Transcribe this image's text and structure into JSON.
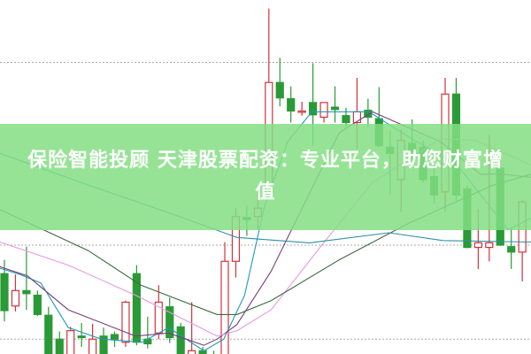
{
  "banner": {
    "title": "保险智能投顾 天津股票配资：专业平台，助您财富增值"
  },
  "colors": {
    "up": "#d2323c",
    "down": "#2a9a36",
    "grid": "#aaaaaa",
    "banner": "#84de84"
  },
  "chart_data": {
    "type": "candlestick",
    "title": "",
    "xlabel": "",
    "ylabel": "",
    "ylim": [
      0,
      46
    ],
    "grid": true,
    "grid_levels": [
      37.9,
      14.2,
      2.0
    ],
    "candles_ohlc": [
      [
        10.5,
        12.3,
        4.3,
        5.7
      ],
      [
        6.3,
        10.4,
        5.6,
        8.3
      ],
      [
        8.3,
        14.0,
        5.8,
        7.9
      ],
      [
        7.7,
        8.3,
        5.0,
        5.2
      ],
      [
        5.1,
        6.2,
        0,
        0
      ],
      [
        2.0,
        3.0,
        -1.0,
        -0.2
      ],
      [
        0,
        3.6,
        -0.2,
        3.1
      ],
      [
        2.4,
        4.1,
        1.0,
        2.2
      ],
      [
        0,
        4.0,
        -0.2,
        2.0
      ],
      [
        2.4,
        3.5,
        -0.2,
        0
      ],
      [
        2.6,
        3.0,
        1.0,
        2.0
      ],
      [
        1.6,
        7.0,
        1.0,
        6.8
      ],
      [
        10.5,
        11.6,
        1.2,
        1.6
      ],
      [
        2.0,
        4.9,
        0.8,
        1.4
      ],
      [
        2.8,
        9.0,
        2.0,
        6.8
      ],
      [
        6.2,
        7.4,
        1.5,
        2.2
      ],
      [
        3.6,
        4.1,
        -0.2,
        0
      ],
      [
        0,
        6.8,
        -0.2,
        0.5
      ],
      [
        0.5,
        1.0,
        -0.2,
        0
      ],
      [
        -0.5,
        0.5,
        -1.0,
        -0.8
      ],
      [
        0,
        14.6,
        -0.2,
        12.1
      ],
      [
        12.1,
        19.0,
        10.0,
        17.9
      ],
      [
        17.8,
        19.4,
        15.4,
        17.5
      ],
      [
        17.9,
        21.5,
        16.3,
        19.0
      ],
      [
        21.0,
        44.9,
        20.5,
        35.3
      ],
      [
        35.3,
        38.5,
        32.2,
        33.3
      ],
      [
        33.2,
        34.8,
        30.1,
        31.6
      ],
      [
        31.5,
        32.8,
        31.0,
        31.6
      ],
      [
        32.7,
        37.8,
        27.1,
        31.1
      ],
      [
        30.8,
        32.7,
        30.1,
        32.7
      ],
      [
        32.1,
        34.8,
        30.1,
        31.8
      ],
      [
        31.0,
        32.0,
        29.5,
        30.1
      ],
      [
        30.1,
        35.9,
        26.7,
        31.5
      ],
      [
        31.7,
        33.2,
        29.5,
        30.8
      ],
      [
        30.6,
        34.7,
        26.9,
        27.1
      ],
      [
        26.9,
        29.0,
        20.7,
        26.1
      ],
      [
        22.7,
        29.2,
        18.5,
        27.8
      ],
      [
        27.4,
        30.5,
        25.3,
        26.4
      ],
      [
        26.9,
        27.8,
        22.3,
        22.7
      ],
      [
        23.1,
        24.6,
        19.6,
        20.7
      ],
      [
        21.1,
        35.9,
        18.5,
        33.8
      ],
      [
        33.8,
        35.9,
        20.0,
        20.7
      ],
      [
        21.5,
        21.9,
        13.8,
        13.9
      ],
      [
        13.9,
        18.9,
        11.1,
        14.5
      ],
      [
        13.9,
        28.5,
        12.1,
        14.5
      ],
      [
        24.2,
        25.3,
        14.1,
        14.2
      ],
      [
        14.0,
        16.5,
        11.1,
        13.3
      ],
      [
        13.3,
        20.0,
        9.5,
        19.8
      ]
    ],
    "moving_averages": [
      {
        "color": "#1e9bb5",
        "points": [
          [
            -0.4,
            11.2
          ],
          [
            1.4,
            10.4
          ],
          [
            3.3,
            9.3
          ],
          [
            5.8,
            3.5
          ],
          [
            8.8,
            2.0
          ],
          [
            12.5,
            1.6
          ],
          [
            14.9,
            3.5
          ],
          [
            18.1,
            0.5
          ],
          [
            19.9,
            2.0
          ],
          [
            21.8,
            7.7
          ],
          [
            23.6,
            19.2
          ],
          [
            25.7,
            27.6
          ],
          [
            27.9,
            31.5
          ],
          [
            33.1,
            31.5
          ],
          [
            36.5,
            28.4
          ],
          [
            41.1,
            24.6
          ],
          [
            45.7,
            16.2
          ],
          [
            47.8,
            17.7
          ]
        ]
      },
      {
        "color": "#7a3f7a",
        "points": [
          [
            -0.4,
            11.4
          ],
          [
            2.1,
            10.2
          ],
          [
            5.8,
            5.8
          ],
          [
            11.9,
            2.4
          ],
          [
            14.9,
            2.8
          ],
          [
            18.1,
            1.2
          ],
          [
            19.3,
            2.0
          ],
          [
            21.1,
            3.9
          ],
          [
            24.2,
            10.8
          ],
          [
            30.4,
            28.8
          ],
          [
            33.4,
            31.5
          ],
          [
            39.6,
            27.6
          ],
          [
            43.2,
            23.4
          ],
          [
            45.1,
            23.4
          ],
          [
            47.8,
            23.0
          ]
        ]
      },
      {
        "color": "#e49be4",
        "points": [
          [
            -0.4,
            14.6
          ],
          [
            5.8,
            11.6
          ],
          [
            11.9,
            7.7
          ],
          [
            19.3,
            2.4
          ],
          [
            21.1,
            3.1
          ],
          [
            24.2,
            5.8
          ],
          [
            28.8,
            14.2
          ],
          [
            33.4,
            22.3
          ],
          [
            39.6,
            28.0
          ],
          [
            42.7,
            27.8
          ],
          [
            47.8,
            24.6
          ]
        ]
      },
      {
        "color": "#3d6b3d",
        "points": [
          [
            -0.4,
            18.8
          ],
          [
            7.6,
            13.5
          ],
          [
            12.4,
            9.0
          ],
          [
            19.3,
            5.2
          ],
          [
            21.1,
            5.2
          ],
          [
            24.2,
            7.0
          ],
          [
            30.4,
            12.3
          ],
          [
            36.5,
            16.9
          ],
          [
            44.2,
            21.9
          ],
          [
            47.8,
            23.4
          ]
        ]
      },
      {
        "color": "#2f8fa6",
        "points": [
          [
            -0.4,
            26.1
          ],
          [
            7.6,
            22.0
          ],
          [
            15.7,
            18.0
          ],
          [
            21.1,
            15.2
          ],
          [
            27.7,
            14.5
          ],
          [
            34.9,
            15.8
          ],
          [
            39.8,
            14.8
          ],
          [
            47.8,
            14.6
          ]
        ]
      }
    ]
  }
}
